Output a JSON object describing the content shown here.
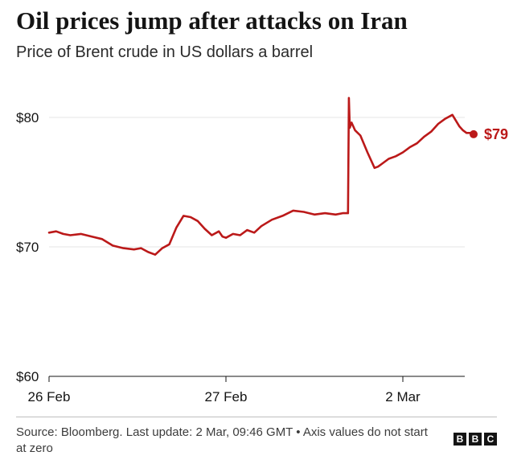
{
  "header": {
    "title": "Oil prices jump after attacks on Iran",
    "subtitle": "Price of Brent crude in US dollars a barrel"
  },
  "footer": {
    "source": "Source: Bloomberg. Last update: 2 Mar, 09:46 GMT • Axis values do not start at zero",
    "logo_letters": [
      "B",
      "B",
      "C"
    ]
  },
  "colors": {
    "series": "#bb1919",
    "text": "#141414",
    "grid": "#e6e6e6",
    "axis": "#141414"
  },
  "chart_data": {
    "type": "line",
    "title": "Oil prices jump after attacks on Iran",
    "subtitle": "Price of Brent crude in US dollars a barrel",
    "xlabel": "",
    "ylabel": "",
    "x_ticks": [
      {
        "label": "26 Feb",
        "value": 0
      },
      {
        "label": "27 Feb",
        "value": 1
      },
      {
        "label": "2 Mar",
        "value": 2
      }
    ],
    "y_ticks": [
      {
        "label": "$60",
        "value": 60
      },
      {
        "label": "$70",
        "value": 70
      },
      {
        "label": "$80",
        "value": 80
      }
    ],
    "ylim": [
      60,
      82
    ],
    "grid": true,
    "end_label": "$79",
    "series": [
      {
        "color": "#bb1919",
        "x": [
          0,
          0.04,
          0.08,
          0.12,
          0.18,
          0.24,
          0.3,
          0.36,
          0.42,
          0.48,
          0.52,
          0.56,
          0.6,
          0.64,
          0.68,
          0.72,
          0.76,
          0.8,
          0.84,
          0.88,
          0.92,
          0.96,
          0.98,
          1.0,
          1.04,
          1.08,
          1.12,
          1.16,
          1.2,
          1.26,
          1.32,
          1.38,
          1.44,
          1.5,
          1.56,
          1.62,
          1.66,
          1.69,
          1.695,
          1.7,
          1.71,
          1.73,
          1.76,
          1.8,
          1.84,
          1.86,
          1.88,
          1.92,
          1.96,
          2.0,
          2.04,
          2.08,
          2.12,
          2.16,
          2.2,
          2.24,
          2.28,
          2.32,
          2.34,
          2.36,
          2.38,
          2.4
        ],
        "values": [
          71.1,
          71.2,
          71.0,
          70.9,
          71.0,
          70.8,
          70.6,
          70.1,
          69.9,
          69.8,
          69.9,
          69.6,
          69.4,
          69.9,
          70.2,
          71.5,
          72.4,
          72.3,
          72.0,
          71.4,
          70.9,
          71.2,
          70.8,
          70.7,
          71.0,
          70.9,
          71.3,
          71.1,
          71.6,
          72.1,
          72.4,
          72.8,
          72.7,
          72.5,
          72.6,
          72.5,
          72.6,
          72.6,
          81.5,
          79.2,
          79.6,
          79.0,
          78.6,
          77.3,
          76.1,
          76.2,
          76.4,
          76.8,
          77.0,
          77.3,
          77.7,
          78.0,
          78.5,
          78.9,
          79.5,
          79.9,
          80.2,
          79.3,
          79.0,
          78.8,
          78.8,
          78.7
        ]
      }
    ]
  }
}
